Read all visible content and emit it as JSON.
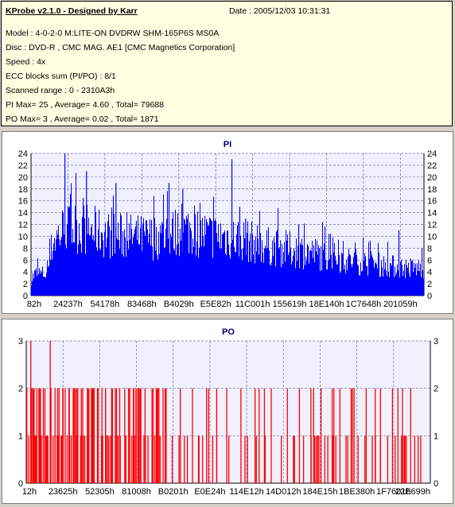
{
  "info": {
    "title": "KProbe v2.1.0 - Designed by Karr",
    "date": "Date : 2005/12/03 10:31:31",
    "model": "Model : 4-0-2-0 M:LITE-ON DVDRW SHM-165P6S MS0A",
    "disc": "Disc : DVD-R , CMC MAG. AE1 [CMC Magnetics Corporation]",
    "speed": "Speed : 4x",
    "ecc": "ECC blocks sum (PI/PO) : 8/1",
    "range": "Scanned range : 0 - 2310A3h",
    "pi_stats": "PI Max= 25 , Average= 4.60 , Total= 79688",
    "po_stats": "PO Max= 3 , Average= 0.02 , Total= 1871"
  },
  "colors": {
    "info_bg": "#ffffe1",
    "pi_bar": "#0000ff",
    "po_bar": "#ff0000",
    "plot_bg": "#f0f0ff",
    "title": "#000080"
  },
  "chart_data": [
    {
      "type": "bar",
      "title": "PI",
      "ylim": [
        0,
        24
      ],
      "yticks": [
        0,
        2,
        4,
        6,
        8,
        10,
        12,
        14,
        16,
        18,
        20,
        22,
        24
      ],
      "xtick_labels": [
        "82h",
        "24237h",
        "54178h",
        "83468h",
        "B4029h",
        "E5E82h",
        "11C001h",
        "155619h",
        "18E140h",
        "1C7648h",
        "201059h"
      ],
      "grid": true,
      "max": 25,
      "average": 4.6,
      "profile": [
        [
          0.0,
          3
        ],
        [
          0.01,
          4
        ],
        [
          0.04,
          4
        ],
        [
          0.055,
          10
        ],
        [
          0.08,
          12
        ],
        [
          0.12,
          12.5
        ],
        [
          0.2,
          11
        ],
        [
          0.3,
          10.5
        ],
        [
          0.4,
          12
        ],
        [
          0.45,
          11
        ],
        [
          0.52,
          10.5
        ],
        [
          0.6,
          9
        ],
        [
          0.7,
          8
        ],
        [
          0.8,
          6.5
        ],
        [
          0.9,
          5.5
        ],
        [
          0.96,
          5
        ],
        [
          1.0,
          5
        ]
      ],
      "spikes": [
        [
          0.085,
          25
        ],
        [
          0.14,
          21
        ],
        [
          0.215,
          19
        ],
        [
          0.35,
          19
        ],
        [
          0.385,
          18
        ],
        [
          0.51,
          23
        ],
        [
          0.53,
          15
        ],
        [
          0.545,
          13
        ],
        [
          0.68,
          12
        ],
        [
          0.935,
          11
        ]
      ]
    },
    {
      "type": "bar",
      "title": "PO",
      "ylim": [
        0,
        3
      ],
      "yticks": [
        0,
        1,
        2,
        3
      ],
      "xtick_labels": [
        "12h",
        "23625h",
        "52305h",
        "81008h",
        "B0201h",
        "E0E24h",
        "114E12h",
        "14D012h",
        "184E15h",
        "1BE380h",
        "1F7601h",
        "22E699h"
      ],
      "grid": true,
      "max": 3,
      "average": 0.02,
      "spikes_3": [
        0.01,
        0.058
      ],
      "spikes_2": [
        0.0,
        0.015,
        0.025,
        0.03,
        0.045,
        0.06,
        0.07,
        0.08,
        0.09,
        0.095,
        0.105,
        0.12,
        0.135,
        0.15,
        0.16,
        0.175,
        0.195,
        0.21,
        0.23,
        0.27,
        0.28,
        0.31,
        0.345,
        0.38,
        0.41,
        0.445,
        0.47,
        0.495,
        0.53,
        0.565,
        0.575,
        0.605,
        0.645,
        0.71,
        0.76,
        0.775,
        0.81,
        0.84,
        0.905,
        0.95
      ],
      "spikes_1": [
        0.005,
        0.02,
        0.035,
        0.05,
        0.065,
        0.075,
        0.085,
        0.1,
        0.11,
        0.125,
        0.14,
        0.165,
        0.185,
        0.2,
        0.225,
        0.245,
        0.26,
        0.29,
        0.3,
        0.33,
        0.36,
        0.39,
        0.425,
        0.46,
        0.5,
        0.54,
        0.59,
        0.63,
        0.66,
        0.685,
        0.72,
        0.745,
        0.79,
        0.82,
        0.855,
        0.875,
        0.93,
        0.96,
        0.975
      ]
    }
  ]
}
